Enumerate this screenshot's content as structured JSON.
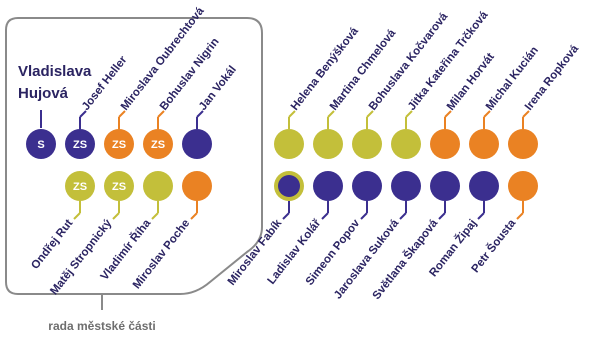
{
  "colors": {
    "purple": "#3b2f8f",
    "orange": "#ea8223",
    "olive": "#c3bf3a",
    "frame": "#8a8a8a",
    "text": "#2b2462"
  },
  "mayor": {
    "line1": "Vladislava",
    "line2": "Hujová"
  },
  "caption": "rada městské části",
  "council_top": [
    {
      "name": "",
      "color": "purple",
      "seat": "S"
    },
    {
      "name": "Josef Heller",
      "color": "purple",
      "seat": "ZS"
    },
    {
      "name": "Miroslava Oubrechtová",
      "color": "orange",
      "seat": "ZS"
    },
    {
      "name": "Bohuslav Nigrin",
      "color": "orange",
      "seat": "ZS"
    },
    {
      "name": "Jan Vokál",
      "color": "purple",
      "seat": ""
    }
  ],
  "council_bottom": [
    {
      "name": "Ondřej Rut",
      "color": "olive",
      "seat": "ZS"
    },
    {
      "name": "Matěj Stropnický",
      "color": "olive",
      "seat": "ZS"
    },
    {
      "name": "Vladimír Říha",
      "color": "olive",
      "seat": ""
    },
    {
      "name": "Miroslav Poche",
      "color": "orange",
      "seat": ""
    }
  ],
  "members_top": [
    {
      "name": "Helena Benýšková",
      "color": "olive"
    },
    {
      "name": "Martina Chmelová",
      "color": "olive"
    },
    {
      "name": "Bohuslava Kočvarová",
      "color": "olive"
    },
    {
      "name": "Jitka Kateřina Trčková",
      "color": "olive"
    },
    {
      "name": "Milan Horvát",
      "color": "orange"
    },
    {
      "name": "Michal Kucián",
      "color": "orange"
    },
    {
      "name": "Irena Ropková",
      "color": "orange"
    }
  ],
  "members_bottom": [
    {
      "name": "Miroslav Fabík",
      "color": "purple",
      "ring": "olive"
    },
    {
      "name": "Ladislav Kolář",
      "color": "purple"
    },
    {
      "name": "Simeon Popov",
      "color": "purple"
    },
    {
      "name": "Jaroslava Suková",
      "color": "purple"
    },
    {
      "name": "Světlana Škapová",
      "color": "purple"
    },
    {
      "name": "Roman Žipaj",
      "color": "purple"
    },
    {
      "name": "Petr Šousta",
      "color": "orange"
    }
  ]
}
